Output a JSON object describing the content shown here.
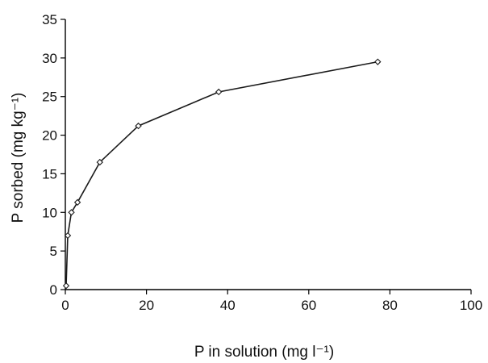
{
  "chart_data": {
    "type": "line",
    "title": "",
    "xlabel": "P in solution (mg l⁻¹)",
    "ylabel": "P sorbed (mg kg⁻¹)",
    "xlim": [
      0,
      100
    ],
    "ylim": [
      0,
      35
    ],
    "xticks": [
      0,
      20,
      40,
      60,
      80,
      100
    ],
    "yticks": [
      0,
      5,
      10,
      15,
      20,
      25,
      30,
      35
    ],
    "grid": false,
    "legend": "none",
    "series": [
      {
        "marker": "diamond",
        "color": "#1a1a1a",
        "x": [
          0.2,
          0.6,
          1.5,
          3.0,
          8.5,
          18.0,
          37.8,
          77.0
        ],
        "y": [
          0.5,
          7.0,
          10.0,
          11.3,
          16.5,
          21.2,
          25.6,
          29.5
        ]
      }
    ]
  }
}
